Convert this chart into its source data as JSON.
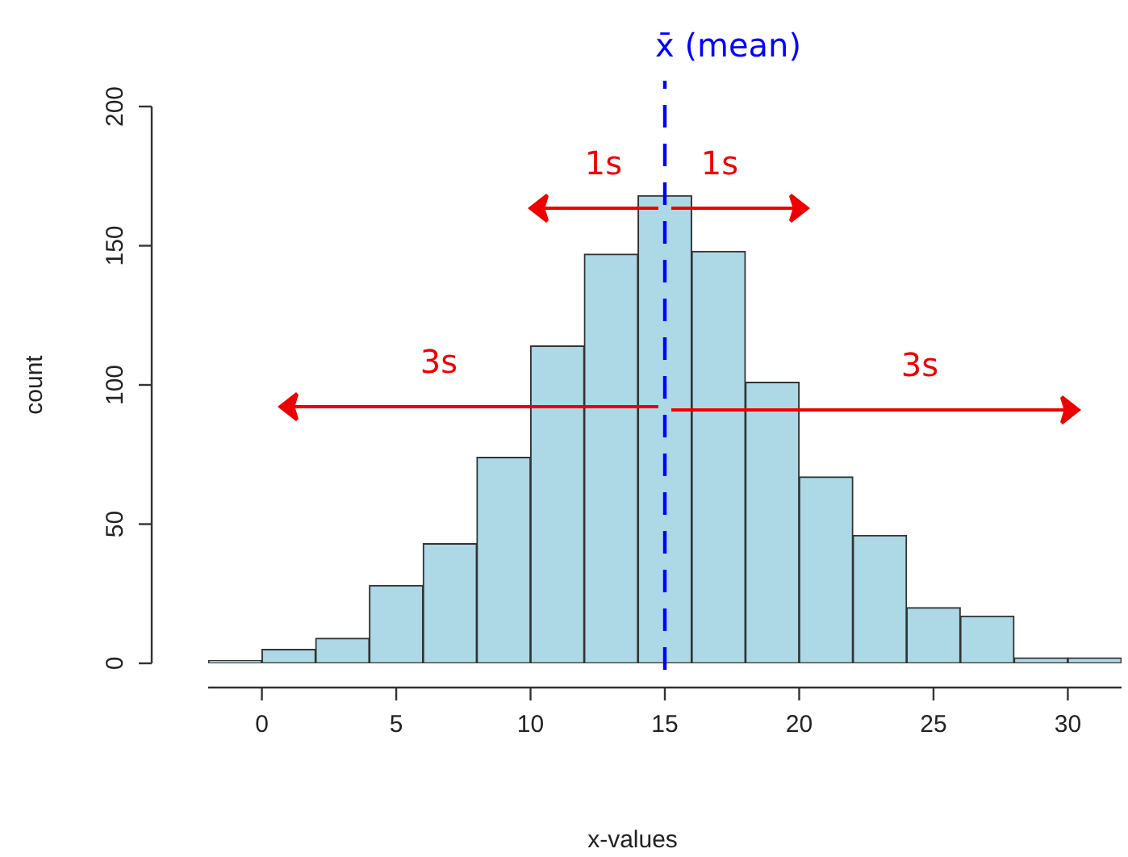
{
  "chart_data": {
    "type": "histogram",
    "xlabel": "x-values",
    "ylabel": "count",
    "color": "#add8e6",
    "bins": [
      -2,
      0,
      2,
      4,
      6,
      8,
      10,
      12,
      14,
      16,
      18,
      20,
      22,
      24,
      26,
      28,
      30,
      32
    ],
    "values": [
      1,
      5,
      9,
      28,
      43,
      74,
      114,
      147,
      168,
      148,
      101,
      67,
      46,
      20,
      17,
      2,
      2
    ],
    "xlim": [
      -2,
      32
    ],
    "xticks": [
      0,
      5,
      10,
      15,
      20,
      25,
      30
    ],
    "ylim": [
      0,
      200
    ],
    "yticks": [
      0,
      50,
      100,
      150,
      200
    ],
    "ref_lines": [
      {
        "axis": "x",
        "value": 15,
        "label": "x̄ (mean)",
        "color": "#0000ff",
        "line_style": "dashed"
      }
    ],
    "annotations": [
      "1s",
      "1s",
      "3s",
      "3s"
    ]
  }
}
